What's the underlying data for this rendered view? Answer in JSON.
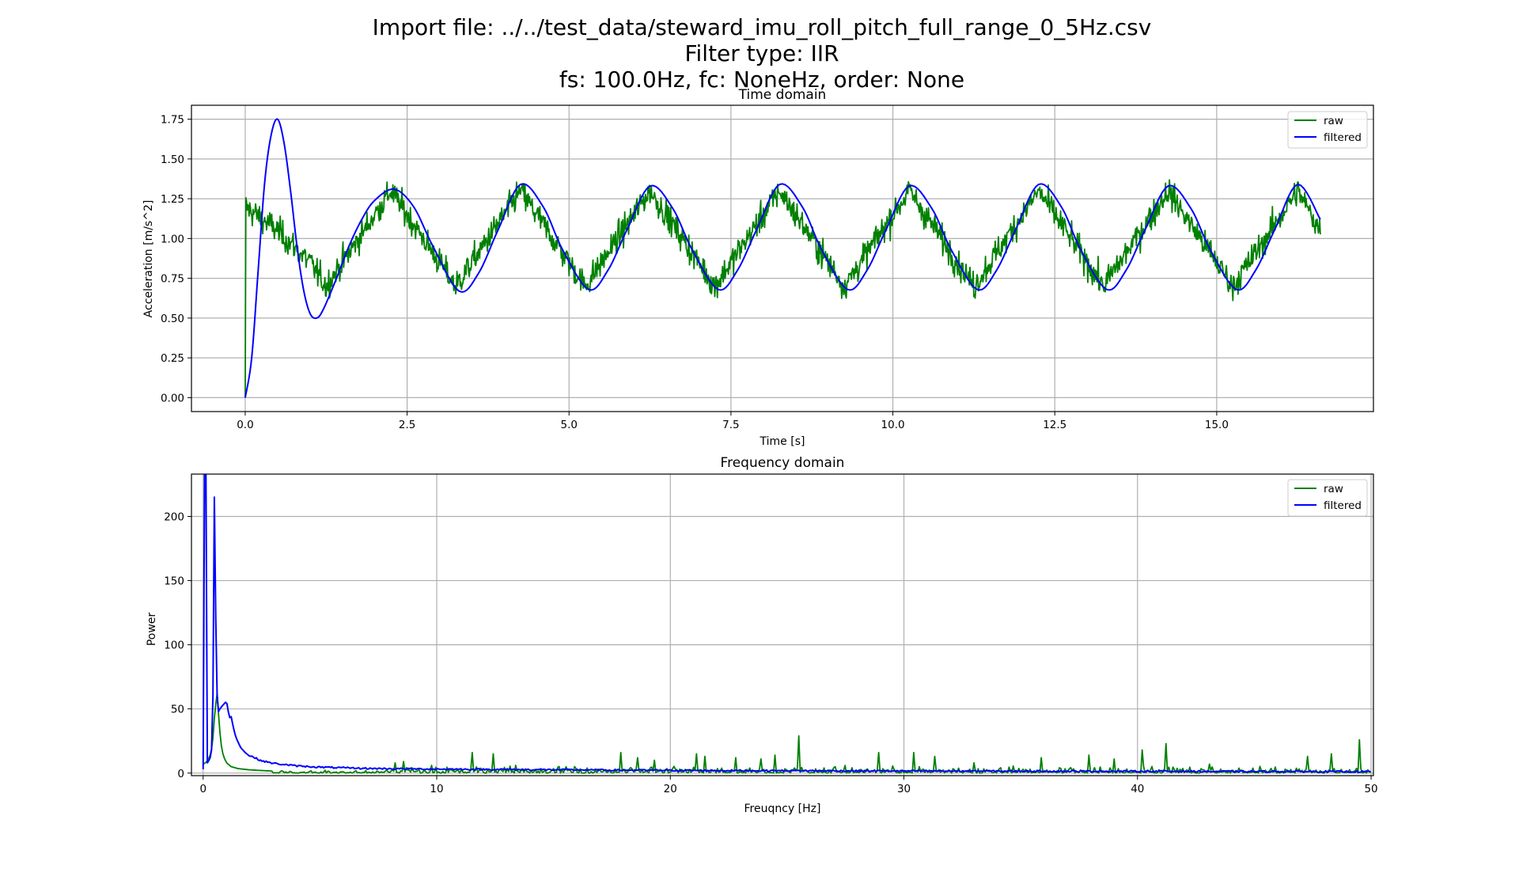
{
  "title_lines": [
    "Import file: ../../test_data/steward_imu_roll_pitch_full_range_0_5Hz.csv",
    "Filter type: IIR",
    "fs: 100.0Hz, fc: NoneHz, order: None"
  ],
  "colors": {
    "raw": "#008000",
    "filtered": "#0000ff"
  },
  "chart_data": [
    {
      "type": "line",
      "title": "Time domain",
      "xlabel": "Time [s]",
      "ylabel": "Acceleration [m/s^2]",
      "xlim": [
        -0.83,
        17.42
      ],
      "ylim": [
        -0.0875,
        1.8375
      ],
      "xticks": [
        0.0,
        2.5,
        5.0,
        7.5,
        10.0,
        12.5,
        15.0
      ],
      "xtick_labels": [
        "0.0",
        "2.5",
        "5.0",
        "7.5",
        "10.0",
        "12.5",
        "15.0"
      ],
      "yticks": [
        0.0,
        0.25,
        0.5,
        0.75,
        1.0,
        1.25,
        1.5,
        1.75
      ],
      "ytick_labels": [
        "0.00",
        "0.25",
        "0.50",
        "0.75",
        "1.00",
        "1.25",
        "1.50",
        "1.75"
      ],
      "grid": true,
      "legend": {
        "position": "top-right",
        "entries": [
          "raw",
          "filtered"
        ]
      },
      "series": [
        {
          "name": "filtered",
          "x": [
            0.0,
            0.1,
            0.2,
            0.3,
            0.4,
            0.5,
            0.6,
            0.7,
            0.8,
            0.9,
            1.0,
            1.1,
            1.2,
            1.4,
            1.6,
            1.8,
            2.0,
            2.3,
            2.6,
            2.9,
            3.3,
            3.6,
            3.9,
            4.25,
            4.6,
            4.9,
            5.3,
            5.6,
            5.9,
            6.25,
            6.6,
            6.9,
            7.3,
            7.6,
            7.9,
            8.25,
            8.6,
            8.9,
            9.3,
            9.6,
            9.9,
            10.25,
            10.6,
            10.9,
            11.3,
            11.6,
            11.9,
            12.25,
            12.6,
            12.9,
            13.3,
            13.6,
            13.9,
            14.25,
            14.6,
            14.9,
            15.3,
            15.6,
            15.9,
            16.25,
            16.6
          ],
          "y": [
            0.0,
            0.25,
            0.8,
            1.35,
            1.65,
            1.75,
            1.6,
            1.3,
            0.95,
            0.68,
            0.53,
            0.5,
            0.55,
            0.74,
            0.95,
            1.12,
            1.24,
            1.31,
            1.2,
            0.95,
            0.67,
            0.78,
            1.05,
            1.34,
            1.2,
            0.93,
            0.68,
            0.8,
            1.06,
            1.33,
            1.19,
            0.93,
            0.68,
            0.8,
            1.06,
            1.34,
            1.2,
            0.93,
            0.68,
            0.8,
            1.06,
            1.33,
            1.19,
            0.93,
            0.68,
            0.8,
            1.06,
            1.34,
            1.2,
            0.93,
            0.68,
            0.8,
            1.06,
            1.33,
            1.19,
            0.93,
            0.68,
            0.8,
            1.06,
            1.34,
            1.12
          ]
        },
        {
          "name": "raw",
          "generated": "noisy 0.5 Hz sine (1.0 +/- 0.3) plus spikes; sampled at 100 Hz, 0 - 16.6 s",
          "envelope_x": [
            0.0,
            0.5,
            1.0,
            1.25,
            2.25,
            3.25,
            4.25,
            5.25,
            6.25,
            7.25,
            8.25,
            9.25,
            10.25,
            11.25,
            12.25,
            13.25,
            14.25,
            15.25,
            16.25,
            16.6
          ],
          "envelope_y": [
            1.2,
            1.05,
            0.85,
            0.7,
            1.3,
            0.7,
            1.3,
            0.7,
            1.3,
            0.7,
            1.3,
            0.7,
            1.3,
            0.7,
            1.3,
            0.7,
            1.3,
            0.7,
            1.3,
            1.05
          ]
        }
      ]
    },
    {
      "type": "line",
      "title": "Frequency domain",
      "xlabel": "Freuqncy [Hz]",
      "ylabel": "Power",
      "xlim": [
        -0.5,
        50.1
      ],
      "ylim": [
        -2,
        233
      ],
      "xticks": [
        0,
        10,
        20,
        30,
        40,
        50
      ],
      "xtick_labels": [
        "0",
        "10",
        "20",
        "30",
        "40",
        "50"
      ],
      "yticks": [
        0,
        50,
        100,
        150,
        200
      ],
      "ytick_labels": [
        "0",
        "50",
        "100",
        "150",
        "200"
      ],
      "grid": true,
      "legend": {
        "position": "top-right",
        "entries": [
          "raw",
          "filtered"
        ]
      },
      "series": [
        {
          "name": "filtered",
          "x": [
            0.0,
            0.06,
            0.12,
            0.18,
            0.25,
            0.3,
            0.36,
            0.42,
            0.48,
            0.54,
            0.6,
            0.66,
            0.72,
            0.8,
            0.9,
            1.0,
            1.06,
            1.12,
            1.2,
            1.3,
            1.4,
            1.6,
            1.8,
            2.0,
            2.5,
            3.0,
            4.0,
            5.0,
            7.0,
            10.0,
            15.0,
            20.0,
            30.0,
            40.0,
            50.0
          ],
          "y": [
            3,
            233,
            233,
            8,
            10,
            12,
            18,
            60,
            215,
            120,
            60,
            48,
            50,
            52,
            54,
            56,
            50,
            43,
            44,
            35,
            28,
            20,
            16,
            13,
            9,
            7,
            5,
            4,
            3,
            2.5,
            2,
            1.5,
            1,
            0.8,
            0.5
          ]
        },
        {
          "name": "raw",
          "x": [
            0.0,
            0.1,
            0.2,
            0.3,
            0.4,
            0.5,
            0.6,
            0.7,
            0.8,
            0.9,
            1.0,
            1.2,
            1.5,
            2.0,
            3.0
          ],
          "y": [
            7,
            8,
            10,
            14,
            22,
            48,
            62,
            35,
            18,
            12,
            8,
            5,
            3.5,
            2.5,
            1.5
          ],
          "noise_floor": [
            0,
            3
          ],
          "peaks": [
            {
              "f": 8.2,
              "p": 8
            },
            {
              "f": 8.6,
              "p": 9
            },
            {
              "f": 9.8,
              "p": 6
            },
            {
              "f": 11.5,
              "p": 16
            },
            {
              "f": 12.4,
              "p": 15
            },
            {
              "f": 13.4,
              "p": 6
            },
            {
              "f": 17.9,
              "p": 16
            },
            {
              "f": 18.6,
              "p": 12
            },
            {
              "f": 19.3,
              "p": 10
            },
            {
              "f": 21.1,
              "p": 15
            },
            {
              "f": 21.5,
              "p": 13
            },
            {
              "f": 22.8,
              "p": 12
            },
            {
              "f": 23.9,
              "p": 11
            },
            {
              "f": 24.5,
              "p": 14
            },
            {
              "f": 25.5,
              "p": 29
            },
            {
              "f": 28.9,
              "p": 16
            },
            {
              "f": 30.4,
              "p": 16
            },
            {
              "f": 31.3,
              "p": 13
            },
            {
              "f": 33.0,
              "p": 8
            },
            {
              "f": 35.9,
              "p": 12
            },
            {
              "f": 37.9,
              "p": 14
            },
            {
              "f": 39.0,
              "p": 11
            },
            {
              "f": 40.2,
              "p": 18
            },
            {
              "f": 41.2,
              "p": 23
            },
            {
              "f": 43.1,
              "p": 7
            },
            {
              "f": 47.3,
              "p": 13
            },
            {
              "f": 48.3,
              "p": 15
            },
            {
              "f": 49.5,
              "p": 26
            }
          ]
        }
      ]
    }
  ]
}
